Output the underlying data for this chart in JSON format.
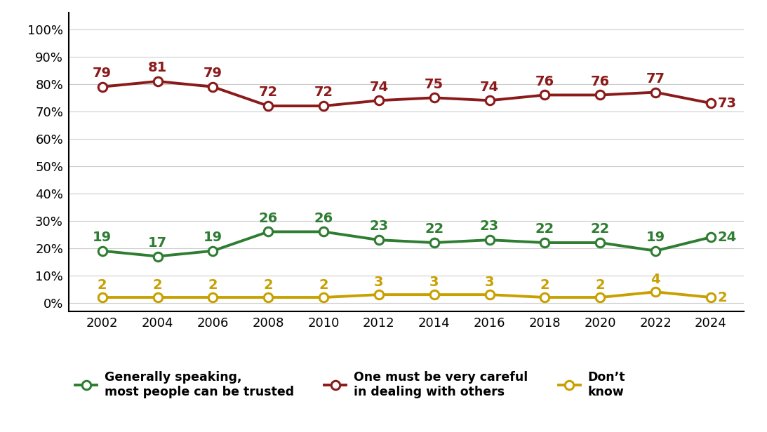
{
  "years": [
    2002,
    2004,
    2006,
    2008,
    2010,
    2012,
    2014,
    2016,
    2018,
    2020,
    2022,
    2024
  ],
  "careful": [
    79,
    81,
    79,
    72,
    72,
    74,
    75,
    74,
    76,
    76,
    77,
    73
  ],
  "trusted": [
    19,
    17,
    19,
    26,
    26,
    23,
    22,
    23,
    22,
    22,
    19,
    24
  ],
  "dont_know": [
    2,
    2,
    2,
    2,
    2,
    3,
    3,
    3,
    2,
    2,
    4,
    2
  ],
  "careful_color": "#8B1A1A",
  "trusted_color": "#2E7D32",
  "dont_know_color": "#C8A000",
  "marker_face": "#FFFFFF",
  "line_width": 2.8,
  "marker_size": 9,
  "marker_edge_width": 2.2,
  "careful_label": "One must be very careful\nin dealing with others",
  "trusted_label": "Generally speaking,\nmost people can be trusted",
  "dont_know_label": "Don’t\nknow",
  "yticks": [
    0,
    10,
    20,
    30,
    40,
    50,
    60,
    70,
    80,
    90,
    100
  ],
  "ylim": [
    -3,
    106
  ],
  "xlim_left": 2000.8,
  "xlim_right": 2025.2,
  "background_color": "#FFFFFF",
  "label_fontsize": 12.5,
  "tick_fontsize": 13,
  "annotation_fontsize": 14,
  "grid_color": "#CCCCCC",
  "grid_linewidth": 0.8
}
